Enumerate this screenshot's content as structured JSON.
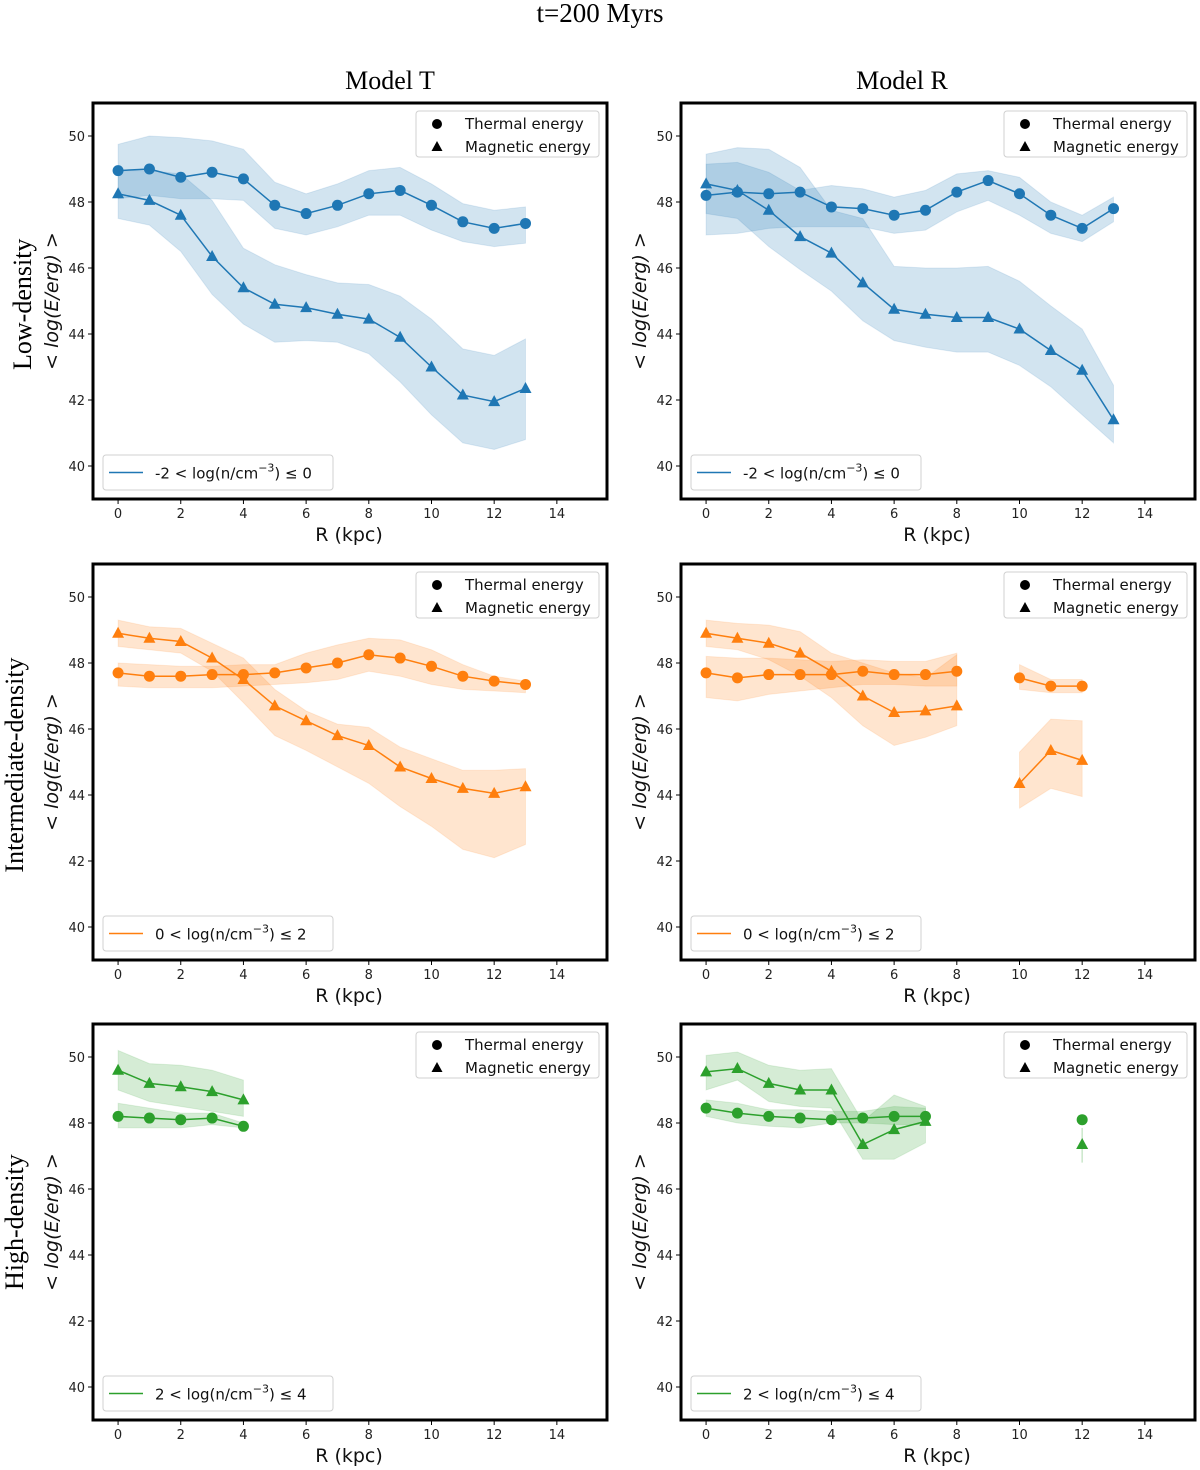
{
  "figure": {
    "suptitle": "t=200 Myrs",
    "column_titles": [
      "Model T",
      "Model R"
    ],
    "row_titles": [
      "Low-density",
      "Intermediate-density",
      "High-density"
    ]
  },
  "chart_data": [
    {
      "type": "line",
      "panel": "Model T / Low-density",
      "xlabel": "R (kpc)",
      "ylabel": "< log(E/erg) >",
      "xlim": [
        -0.8,
        15.6
      ],
      "ylim": [
        39,
        51
      ],
      "xticks": [
        0,
        2,
        4,
        6,
        8,
        10,
        12,
        14
      ],
      "yticks": [
        40,
        42,
        44,
        46,
        48,
        50
      ],
      "color": "#1f77b4",
      "legend_markers": [
        {
          "marker": "circle",
          "label": "Thermal energy"
        },
        {
          "marker": "triangle",
          "label": "Magnetic energy"
        }
      ],
      "legend_markers_position": "top-right",
      "legend_line": {
        "label": "-2 < log(n/cm⁻³) ≤  0",
        "position": "bottom-left"
      },
      "series": [
        {
          "name": "Thermal energy",
          "marker": "circle",
          "x": [
            0,
            1,
            2,
            3,
            4,
            5,
            6,
            7,
            8,
            9,
            10,
            11,
            12,
            13
          ],
          "y": [
            48.95,
            49.0,
            48.75,
            48.9,
            48.7,
            47.9,
            47.65,
            47.9,
            48.25,
            48.35,
            47.9,
            47.4,
            47.2,
            47.35
          ],
          "lo": [
            48.1,
            48.2,
            48.1,
            48.1,
            48.05,
            47.2,
            47.0,
            47.25,
            47.6,
            47.6,
            47.15,
            46.8,
            46.65,
            46.75
          ],
          "hi": [
            49.75,
            50.0,
            49.95,
            49.85,
            49.6,
            48.6,
            48.25,
            48.55,
            48.95,
            49.05,
            48.55,
            47.95,
            47.75,
            47.85
          ]
        },
        {
          "name": "Magnetic energy",
          "marker": "triangle",
          "x": [
            0,
            1,
            2,
            3,
            4,
            5,
            6,
            7,
            8,
            9,
            10,
            11,
            12,
            13
          ],
          "y": [
            48.25,
            48.05,
            47.6,
            46.35,
            45.4,
            44.9,
            44.8,
            44.6,
            44.45,
            43.9,
            43.0,
            42.15,
            41.95,
            42.35
          ],
          "lo": [
            47.5,
            47.3,
            46.5,
            45.2,
            44.3,
            43.75,
            43.8,
            43.75,
            43.4,
            42.55,
            41.55,
            40.7,
            40.5,
            40.8
          ],
          "hi": [
            48.95,
            48.95,
            48.85,
            48.05,
            46.6,
            46.1,
            45.8,
            45.55,
            45.5,
            45.15,
            44.45,
            43.55,
            43.35,
            43.85
          ]
        }
      ]
    },
    {
      "type": "line",
      "panel": "Model R / Low-density",
      "xlabel": "R (kpc)",
      "ylabel": "< log(E/erg) >",
      "xlim": [
        -0.8,
        15.6
      ],
      "ylim": [
        39,
        51
      ],
      "xticks": [
        0,
        2,
        4,
        6,
        8,
        10,
        12,
        14
      ],
      "yticks": [
        40,
        42,
        44,
        46,
        48,
        50
      ],
      "color": "#1f77b4",
      "legend_markers": [
        {
          "marker": "circle",
          "label": "Thermal energy"
        },
        {
          "marker": "triangle",
          "label": "Magnetic energy"
        }
      ],
      "legend_markers_position": "top-right",
      "legend_line": {
        "label": "-2 < log(n/cm⁻³) ≤  0",
        "position": "bottom-left"
      },
      "series": [
        {
          "name": "Thermal energy",
          "marker": "circle",
          "x": [
            0,
            1,
            2,
            3,
            4,
            5,
            6,
            7,
            8,
            9,
            10,
            11,
            12,
            13
          ],
          "y": [
            48.2,
            48.3,
            48.25,
            48.3,
            47.85,
            47.8,
            47.6,
            47.75,
            48.3,
            48.65,
            48.25,
            47.6,
            47.2,
            47.8
          ],
          "lo": [
            47.0,
            47.05,
            47.2,
            47.25,
            47.25,
            47.25,
            47.05,
            47.15,
            47.7,
            48.05,
            47.6,
            47.05,
            46.8,
            47.4
          ],
          "hi": [
            49.15,
            49.2,
            48.9,
            48.35,
            48.5,
            48.4,
            48.15,
            48.35,
            48.85,
            48.95,
            48.75,
            48.0,
            47.6,
            48.15
          ]
        },
        {
          "name": "Magnetic energy",
          "marker": "triangle",
          "x": [
            0,
            1,
            2,
            3,
            4,
            5,
            6,
            7,
            8,
            9,
            10,
            11,
            12,
            13
          ],
          "y": [
            48.55,
            48.35,
            47.75,
            46.95,
            46.45,
            45.55,
            44.75,
            44.6,
            44.5,
            44.5,
            44.15,
            43.5,
            42.9,
            41.4
          ],
          "lo": [
            47.65,
            47.5,
            46.65,
            45.95,
            45.3,
            44.4,
            43.8,
            43.6,
            43.45,
            43.45,
            43.05,
            42.4,
            41.55,
            40.7
          ],
          "hi": [
            49.45,
            49.65,
            49.6,
            49.05,
            47.75,
            47.5,
            46.05,
            46.0,
            46.0,
            46.05,
            45.6,
            44.85,
            44.15,
            42.45
          ]
        }
      ]
    },
    {
      "type": "line",
      "panel": "Model T / Intermediate-density",
      "xlabel": "R (kpc)",
      "ylabel": "< log(E/erg) >",
      "xlim": [
        -0.8,
        15.6
      ],
      "ylim": [
        39,
        51
      ],
      "xticks": [
        0,
        2,
        4,
        6,
        8,
        10,
        12,
        14
      ],
      "yticks": [
        40,
        42,
        44,
        46,
        48,
        50
      ],
      "color": "#ff7f0e",
      "legend_markers": [
        {
          "marker": "circle",
          "label": "Thermal energy"
        },
        {
          "marker": "triangle",
          "label": "Magnetic energy"
        }
      ],
      "legend_markers_position": "top-right",
      "legend_line": {
        "label": "0 < log(n/cm⁻³) ≤  2",
        "position": "bottom-left"
      },
      "series": [
        {
          "name": "Thermal energy",
          "marker": "circle",
          "x": [
            0,
            1,
            2,
            3,
            4,
            5,
            6,
            7,
            8,
            9,
            10,
            11,
            12,
            13
          ],
          "y": [
            47.7,
            47.6,
            47.6,
            47.65,
            47.65,
            47.7,
            47.85,
            48.0,
            48.25,
            48.15,
            47.9,
            47.6,
            47.45,
            47.35
          ],
          "lo": [
            47.3,
            47.25,
            47.25,
            47.25,
            47.3,
            47.35,
            47.4,
            47.5,
            47.75,
            47.6,
            47.35,
            47.2,
            47.15,
            47.1
          ],
          "hi": [
            48.0,
            47.95,
            47.9,
            47.9,
            47.95,
            47.95,
            48.3,
            48.55,
            48.75,
            48.7,
            48.4,
            47.95,
            47.6,
            47.45
          ]
        },
        {
          "name": "Magnetic energy",
          "marker": "triangle",
          "x": [
            0,
            1,
            2,
            3,
            4,
            5,
            6,
            7,
            8,
            9,
            10,
            11,
            12,
            13
          ],
          "y": [
            48.9,
            48.75,
            48.65,
            48.15,
            47.5,
            46.7,
            46.25,
            45.8,
            45.5,
            44.85,
            44.5,
            44.2,
            44.05,
            44.25
          ],
          "lo": [
            48.5,
            48.4,
            48.3,
            47.75,
            46.8,
            45.8,
            45.35,
            44.85,
            44.35,
            43.65,
            43.05,
            42.35,
            42.1,
            42.5
          ],
          "hi": [
            49.3,
            49.1,
            49.05,
            48.6,
            48.15,
            47.2,
            46.55,
            46.15,
            46.05,
            45.45,
            45.1,
            44.75,
            44.75,
            44.8
          ]
        }
      ]
    },
    {
      "type": "line",
      "panel": "Model R / Intermediate-density",
      "xlabel": "R (kpc)",
      "ylabel": "< log(E/erg) >",
      "xlim": [
        -0.8,
        15.6
      ],
      "ylim": [
        39,
        51
      ],
      "xticks": [
        0,
        2,
        4,
        6,
        8,
        10,
        12,
        14
      ],
      "yticks": [
        40,
        42,
        44,
        46,
        48,
        50
      ],
      "color": "#ff7f0e",
      "legend_markers": [
        {
          "marker": "circle",
          "label": "Thermal energy"
        },
        {
          "marker": "triangle",
          "label": "Magnetic energy"
        }
      ],
      "legend_markers_position": "top-right",
      "legend_line": {
        "label": "0 < log(n/cm⁻³) ≤  2",
        "position": "bottom-left"
      },
      "series": [
        {
          "name": "Thermal energy (R 0-8)",
          "marker": "circle",
          "x": [
            0,
            1,
            2,
            3,
            4,
            5,
            6,
            7,
            8
          ],
          "y": [
            47.7,
            47.55,
            47.65,
            47.65,
            47.65,
            47.75,
            47.65,
            47.65,
            47.75
          ],
          "lo": [
            46.95,
            46.85,
            47.05,
            47.15,
            47.25,
            47.35,
            47.35,
            47.3,
            47.3
          ],
          "hi": [
            48.2,
            48.15,
            48.15,
            48.1,
            48.05,
            48.1,
            48.05,
            48.05,
            48.3
          ]
        },
        {
          "name": "Thermal energy (R 10-12)",
          "marker": "circle",
          "x": [
            10,
            11,
            12
          ],
          "y": [
            47.55,
            47.3,
            47.3
          ],
          "lo": [
            47.2,
            47.1,
            47.1
          ],
          "hi": [
            47.95,
            47.5,
            47.5
          ]
        },
        {
          "name": "Magnetic energy (R 0-8)",
          "marker": "triangle",
          "x": [
            0,
            1,
            2,
            3,
            4,
            5,
            6,
            7,
            8
          ],
          "y": [
            48.9,
            48.75,
            48.6,
            48.3,
            47.75,
            47.0,
            46.5,
            46.55,
            46.7
          ],
          "lo": [
            48.5,
            48.4,
            48.1,
            47.6,
            46.95,
            46.1,
            45.5,
            45.75,
            46.1
          ],
          "hi": [
            49.3,
            49.2,
            49.15,
            48.95,
            48.3,
            48.0,
            47.7,
            47.55,
            48.25
          ]
        },
        {
          "name": "Magnetic energy (R 10-12)",
          "marker": "triangle",
          "x": [
            10,
            11,
            12
          ],
          "y": [
            44.35,
            45.35,
            45.05
          ],
          "lo": [
            43.6,
            44.2,
            43.95
          ],
          "hi": [
            45.3,
            46.3,
            46.25
          ]
        }
      ]
    },
    {
      "type": "line",
      "panel": "Model T / High-density",
      "xlabel": "R (kpc)",
      "ylabel": "< log(E/erg) >",
      "xlim": [
        -0.8,
        15.6
      ],
      "ylim": [
        39,
        51
      ],
      "xticks": [
        0,
        2,
        4,
        6,
        8,
        10,
        12,
        14
      ],
      "yticks": [
        40,
        42,
        44,
        46,
        48,
        50
      ],
      "color": "#2ca02c",
      "legend_markers": [
        {
          "marker": "circle",
          "label": "Thermal energy"
        },
        {
          "marker": "triangle",
          "label": "Magnetic energy"
        }
      ],
      "legend_markers_position": "top-right",
      "legend_line": {
        "label": "2 < log(n/cm⁻³) ≤  4",
        "position": "bottom-left"
      },
      "series": [
        {
          "name": "Thermal energy",
          "marker": "circle",
          "x": [
            0,
            1,
            2,
            3,
            4
          ],
          "y": [
            48.2,
            48.15,
            48.1,
            48.15,
            47.9
          ],
          "lo": [
            47.85,
            47.85,
            47.85,
            47.95,
            47.85
          ],
          "hi": [
            48.6,
            48.45,
            48.3,
            48.3,
            48.0
          ]
        },
        {
          "name": "Magnetic energy",
          "marker": "triangle",
          "x": [
            0,
            1,
            2,
            3,
            4
          ],
          "y": [
            49.6,
            49.2,
            49.1,
            48.95,
            48.7
          ],
          "lo": [
            49.0,
            48.65,
            48.5,
            48.35,
            48.2
          ],
          "hi": [
            50.2,
            49.8,
            49.75,
            49.6,
            49.3
          ]
        }
      ]
    },
    {
      "type": "line",
      "panel": "Model R / High-density",
      "xlabel": "R (kpc)",
      "ylabel": "< log(E/erg) >",
      "xlim": [
        -0.8,
        15.6
      ],
      "ylim": [
        39,
        51
      ],
      "xticks": [
        0,
        2,
        4,
        6,
        8,
        10,
        12,
        14
      ],
      "yticks": [
        40,
        42,
        44,
        46,
        48,
        50
      ],
      "color": "#2ca02c",
      "legend_markers": [
        {
          "marker": "circle",
          "label": "Thermal energy"
        },
        {
          "marker": "triangle",
          "label": "Magnetic energy"
        }
      ],
      "legend_markers_position": "top-right",
      "legend_line": {
        "label": "2 < log(n/cm⁻³) ≤  4",
        "position": "bottom-left"
      },
      "series": [
        {
          "name": "Thermal energy (R 0-7)",
          "marker": "circle",
          "x": [
            0,
            1,
            2,
            3,
            4,
            5,
            6,
            7
          ],
          "y": [
            48.45,
            48.3,
            48.2,
            48.15,
            48.1,
            48.15,
            48.2,
            48.2
          ],
          "lo": [
            48.2,
            48.0,
            47.9,
            47.85,
            48.0,
            48.0,
            47.95,
            47.95
          ],
          "hi": [
            48.7,
            48.6,
            48.4,
            48.4,
            48.35,
            48.35,
            48.5,
            48.45
          ]
        },
        {
          "name": "Thermal energy (R 12)",
          "marker": "circle",
          "x": [
            12
          ],
          "y": [
            48.1
          ],
          "lo": [
            48.1
          ],
          "hi": [
            48.1
          ]
        },
        {
          "name": "Magnetic energy (R 0-7)",
          "marker": "triangle",
          "x": [
            0,
            1,
            2,
            3,
            4,
            5,
            6,
            7
          ],
          "y": [
            49.55,
            49.65,
            49.2,
            49.0,
            49.0,
            47.35,
            47.8,
            48.05
          ],
          "lo": [
            49.0,
            49.3,
            48.65,
            48.5,
            48.45,
            46.9,
            46.9,
            47.4
          ],
          "hi": [
            50.05,
            50.15,
            49.75,
            49.6,
            49.65,
            48.05,
            48.85,
            48.5
          ]
        },
        {
          "name": "Magnetic energy (R 12)",
          "marker": "triangle",
          "x": [
            12
          ],
          "y": [
            47.35
          ],
          "lo": [
            46.8
          ],
          "hi": [
            47.85
          ]
        }
      ]
    }
  ]
}
